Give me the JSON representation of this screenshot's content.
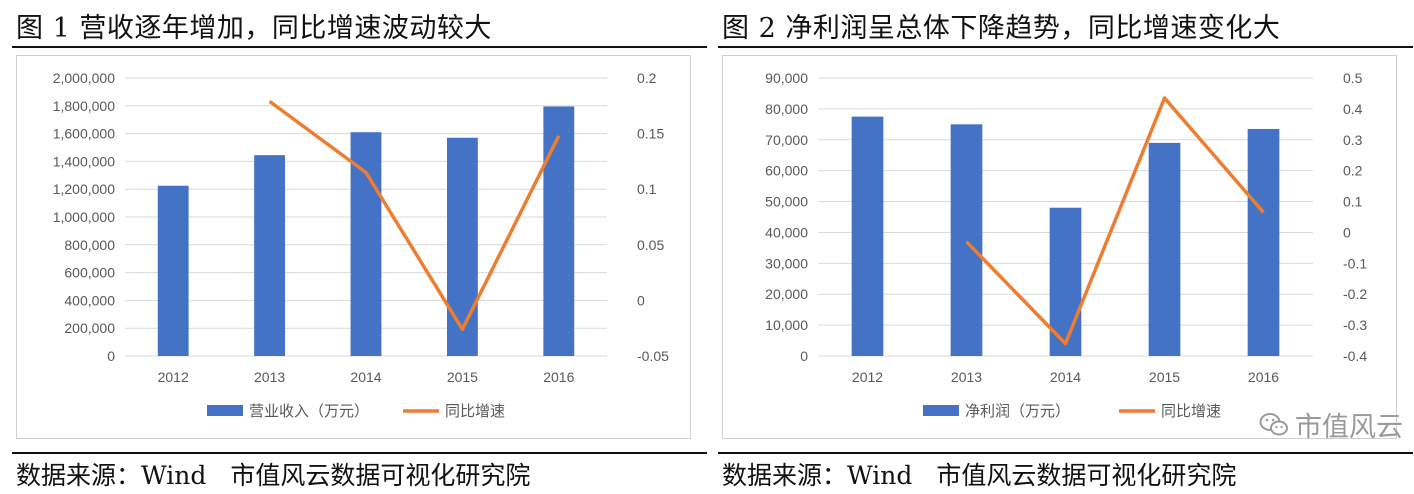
{
  "chart_data": [
    {
      "type": "bar",
      "title": "图 1 营收逐年增加，同比增速波动较大",
      "categories": [
        "2012",
        "2013",
        "2014",
        "2015",
        "2016"
      ],
      "series": [
        {
          "name": "营业收入（万元）",
          "type": "bar",
          "axis": "left",
          "color": "#4472C4",
          "values": [
            1225000,
            1445000,
            1610000,
            1570000,
            1795000
          ]
        },
        {
          "name": "同比增速",
          "type": "line",
          "axis": "right",
          "color": "#ED7D31",
          "values": [
            null,
            0.179,
            0.115,
            -0.026,
            0.148
          ]
        }
      ],
      "y_left": {
        "range": [
          0,
          2000000
        ],
        "ticks": [
          "0",
          "200,000",
          "400,000",
          "600,000",
          "800,000",
          "1,000,000",
          "1,200,000",
          "1,400,000",
          "1,600,000",
          "1,800,000",
          "2,000,000"
        ]
      },
      "y_right": {
        "range": [
          -0.05,
          0.2
        ],
        "ticks": [
          "-0.05",
          "0",
          "0.05",
          "0.1",
          "0.15",
          "0.2"
        ]
      },
      "grid": true,
      "legend": "bottom",
      "source": "数据来源：Wind",
      "source_org": "市值风云数据可视化研究院"
    },
    {
      "type": "bar",
      "title": "图 2 净利润呈总体下降趋势，同比增速变化大",
      "categories": [
        "2012",
        "2013",
        "2014",
        "2015",
        "2016"
      ],
      "series": [
        {
          "name": "净利润（万元）",
          "type": "bar",
          "axis": "left",
          "color": "#4472C4",
          "values": [
            77500,
            75000,
            48000,
            69000,
            73500
          ]
        },
        {
          "name": "同比增速",
          "type": "line",
          "axis": "right",
          "color": "#ED7D31",
          "values": [
            null,
            -0.03,
            -0.36,
            0.435,
            0.065
          ]
        }
      ],
      "y_left": {
        "range": [
          0,
          90000
        ],
        "ticks": [
          "0",
          "10,000",
          "20,000",
          "30,000",
          "40,000",
          "50,000",
          "60,000",
          "70,000",
          "80,000",
          "90,000"
        ]
      },
      "y_right": {
        "range": [
          -0.4,
          0.5
        ],
        "ticks": [
          "-0.4",
          "-0.3",
          "-0.2",
          "-0.1",
          "0",
          "0.1",
          "0.2",
          "0.3",
          "0.4",
          "0.5"
        ]
      },
      "grid": true,
      "legend": "bottom",
      "source": "数据来源：Wind",
      "source_org": "市值风云数据可视化研究院",
      "watermark": "市值风云",
      "watermark_icon": "wechat-icon"
    }
  ]
}
